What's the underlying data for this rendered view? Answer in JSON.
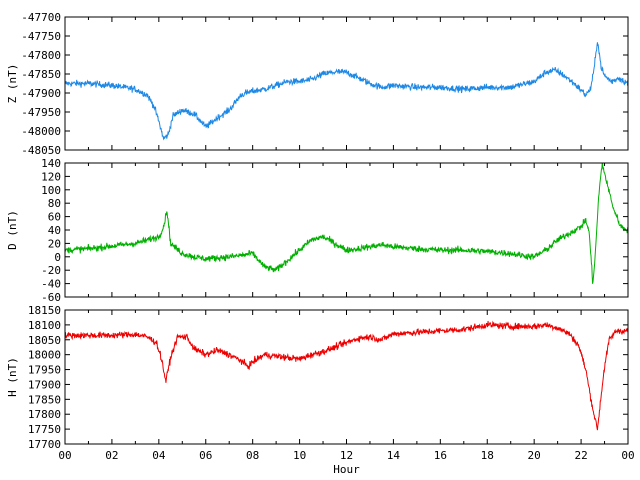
{
  "chart_data": [
    {
      "type": "line",
      "ylabel": "Z (nT)",
      "xlim": [
        0,
        24
      ],
      "ylim": [
        -48050,
        -47700
      ],
      "yticks": [
        -48050,
        -48000,
        -47950,
        -47900,
        -47850,
        -47800,
        -47750,
        -47700
      ],
      "color": "#1e88e5",
      "series": [
        {
          "x": [
            0,
            1,
            2,
            2.5,
            3,
            3.5,
            3.8,
            4.0,
            4.2,
            4.4,
            4.6,
            5.0,
            5.5,
            5.8,
            6.0,
            6.5,
            7.0,
            7.5,
            8.0,
            8.5,
            9.0,
            9.5,
            10.0,
            10.5,
            11.0,
            11.5,
            12.0,
            12.5,
            13.0,
            13.5,
            14.0,
            15.0,
            16.0,
            17.0,
            18.0,
            19.0,
            20.0,
            20.5,
            20.9,
            21.3,
            21.8,
            22.2,
            22.4,
            22.55,
            22.7,
            22.85,
            23.0,
            23.3,
            23.6,
            24.0
          ],
          "values": [
            -47875,
            -47875,
            -47880,
            -47885,
            -47890,
            -47905,
            -47935,
            -47975,
            -48020,
            -48010,
            -47960,
            -47945,
            -47955,
            -47975,
            -47990,
            -47965,
            -47945,
            -47905,
            -47895,
            -47890,
            -47880,
            -47870,
            -47870,
            -47865,
            -47850,
            -47845,
            -47845,
            -47860,
            -47875,
            -47885,
            -47880,
            -47885,
            -47885,
            -47890,
            -47885,
            -47885,
            -47870,
            -47845,
            -47840,
            -47855,
            -47880,
            -47905,
            -47890,
            -47840,
            -47760,
            -47830,
            -47855,
            -47870,
            -47860,
            -47875
          ]
        }
      ]
    },
    {
      "type": "line",
      "ylabel": "D (nT)",
      "xlim": [
        0,
        24
      ],
      "ylim": [
        -60,
        140
      ],
      "yticks": [
        -60,
        -40,
        -20,
        0,
        20,
        40,
        60,
        80,
        100,
        120,
        140
      ],
      "color": "#00b000",
      "series": [
        {
          "x": [
            0,
            1,
            2,
            3,
            3.5,
            4.0,
            4.2,
            4.35,
            4.5,
            5.0,
            5.5,
            6.0,
            7.0,
            7.5,
            8.0,
            8.5,
            9.0,
            9.5,
            10.0,
            10.5,
            11.0,
            11.5,
            12.0,
            12.5,
            13.0,
            13.5,
            14.0,
            15.0,
            16.0,
            17.0,
            18.0,
            19.0,
            19.5,
            20.0,
            20.5,
            21.0,
            21.5,
            22.0,
            22.2,
            22.35,
            22.5,
            22.6,
            22.75,
            22.9,
            23.1,
            23.4,
            23.7,
            24.0
          ],
          "values": [
            10,
            12,
            16,
            20,
            25,
            30,
            45,
            70,
            20,
            5,
            0,
            -3,
            0,
            2,
            5,
            -15,
            -20,
            -5,
            10,
            25,
            30,
            20,
            10,
            12,
            15,
            18,
            15,
            12,
            10,
            10,
            8,
            5,
            2,
            0,
            10,
            25,
            35,
            45,
            55,
            35,
            -40,
            0,
            90,
            140,
            110,
            70,
            45,
            40
          ]
        }
      ]
    },
    {
      "type": "line",
      "ylabel": "H (nT)",
      "xlim": [
        0,
        24
      ],
      "ylim": [
        17700,
        18150
      ],
      "yticks": [
        17700,
        17750,
        17800,
        17850,
        17900,
        17950,
        18000,
        18050,
        18100,
        18150
      ],
      "color": "#ee0000",
      "series": [
        {
          "x": [
            0,
            1,
            2,
            3,
            3.5,
            3.9,
            4.1,
            4.3,
            4.5,
            4.8,
            5.2,
            5.5,
            6.0,
            6.5,
            7.0,
            7.5,
            7.8,
            8.0,
            8.5,
            9.0,
            9.5,
            10.0,
            10.5,
            11.0,
            11.5,
            12.0,
            12.5,
            13.0,
            13.5,
            14.0,
            15.0,
            16.0,
            17.0,
            18.0,
            19.0,
            20.0,
            20.5,
            21.0,
            21.5,
            21.9,
            22.2,
            22.4,
            22.55,
            22.7,
            22.85,
            23.0,
            23.2,
            23.5,
            24.0
          ],
          "values": [
            18065,
            18065,
            18065,
            18068,
            18060,
            18040,
            17990,
            17910,
            17990,
            18060,
            18060,
            18020,
            18000,
            18015,
            18000,
            17980,
            17960,
            17975,
            18000,
            17995,
            17990,
            17985,
            18000,
            18010,
            18025,
            18040,
            18055,
            18060,
            18050,
            18070,
            18075,
            18080,
            18085,
            18100,
            18095,
            18095,
            18100,
            18090,
            18070,
            18030,
            17950,
            17860,
            17800,
            17750,
            17860,
            17960,
            18050,
            18080,
            18080
          ]
        }
      ]
    }
  ],
  "x_axis": {
    "label": "Hour",
    "ticks": [
      "00",
      "02",
      "04",
      "06",
      "08",
      "10",
      "12",
      "14",
      "16",
      "18",
      "20",
      "22",
      "00"
    ]
  }
}
